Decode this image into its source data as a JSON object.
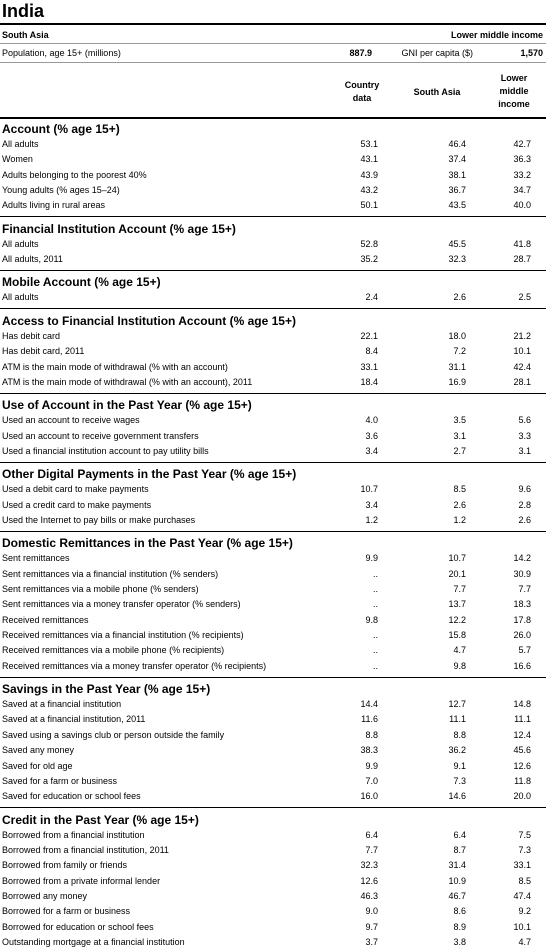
{
  "header": {
    "title": "India",
    "region": "South Asia",
    "income_group": "Lower middle income",
    "population_label": "Population, age 15+ (millions)",
    "population": "887.9",
    "gni_label": "GNI per capita ($)",
    "gni": "1,570"
  },
  "columns": [
    "Country data",
    "South Asia",
    "Lower middle income"
  ],
  "sections": [
    {
      "title": "Account (% age 15+)",
      "rows": [
        [
          "All adults",
          "53.1",
          "46.4",
          "42.7"
        ],
        [
          "Women",
          "43.1",
          "37.4",
          "36.3"
        ],
        [
          "Adults belonging to the poorest 40%",
          "43.9",
          "38.1",
          "33.2"
        ],
        [
          "Young adults (% ages 15–24)",
          "43.2",
          "36.7",
          "34.7"
        ],
        [
          "Adults living in rural areas",
          "50.1",
          "43.5",
          "40.0"
        ]
      ]
    },
    {
      "title": "Financial Institution Account (% age 15+)",
      "rows": [
        [
          "All adults",
          "52.8",
          "45.5",
          "41.8"
        ],
        [
          "All adults, 2011",
          "35.2",
          "32.3",
          "28.7"
        ]
      ]
    },
    {
      "title": "Mobile Account (% age 15+)",
      "rows": [
        [
          "All adults",
          "2.4",
          "2.6",
          "2.5"
        ]
      ]
    },
    {
      "title": "Access to Financial Institution Account (% age 15+)",
      "rows": [
        [
          "Has debit card",
          "22.1",
          "18.0",
          "21.2"
        ],
        [
          "Has debit card, 2011",
          "8.4",
          "7.2",
          "10.1"
        ],
        [
          "ATM is the main mode of withdrawal (% with an account)",
          "33.1",
          "31.1",
          "42.4"
        ],
        [
          "ATM is the main mode of withdrawal (% with an account), 2011",
          "18.4",
          "16.9",
          "28.1"
        ]
      ]
    },
    {
      "title": "Use of Account in the Past Year (% age 15+)",
      "rows": [
        [
          "Used an account to receive wages",
          "4.0",
          "3.5",
          "5.6"
        ],
        [
          "Used an account to receive government transfers",
          "3.6",
          "3.1",
          "3.3"
        ],
        [
          "Used a financial institution account to pay utility bills",
          "3.4",
          "2.7",
          "3.1"
        ]
      ]
    },
    {
      "title": "Other Digital Payments in the Past Year (% age 15+)",
      "rows": [
        [
          "Used a debit card to make payments",
          "10.7",
          "8.5",
          "9.6"
        ],
        [
          "Used a credit card to make payments",
          "3.4",
          "2.6",
          "2.8"
        ],
        [
          "Used the Internet to pay bills or make purchases",
          "1.2",
          "1.2",
          "2.6"
        ]
      ]
    },
    {
      "title": "Domestic Remittances in the Past Year (% age 15+)",
      "rows": [
        [
          "Sent remittances",
          "9.9",
          "10.7",
          "14.2"
        ],
        [
          "Sent remittances via a financial institution (% senders)",
          "..",
          "20.1",
          "30.9"
        ],
        [
          "Sent remittances via a mobile phone (% senders)",
          "..",
          "7.7",
          "7.7"
        ],
        [
          "Sent remittances via a money transfer operator (% senders)",
          "..",
          "13.7",
          "18.3"
        ],
        [
          "Received remittances",
          "9.8",
          "12.2",
          "17.8"
        ],
        [
          "Received remittances via a financial institution (% recipients)",
          "..",
          "15.8",
          "26.0"
        ],
        [
          "Received remittances via a mobile phone (% recipients)",
          "..",
          "4.7",
          "5.7"
        ],
        [
          "Received remittances via a money transfer operator (% recipients)",
          "..",
          "9.8",
          "16.6"
        ]
      ]
    },
    {
      "title": "Savings in the Past Year (% age 15+)",
      "rows": [
        [
          "Saved at a financial institution",
          "14.4",
          "12.7",
          "14.8"
        ],
        [
          "Saved at a financial institution, 2011",
          "11.6",
          "11.1",
          "11.1"
        ],
        [
          "Saved using a savings club or person outside the family",
          "8.8",
          "8.8",
          "12.4"
        ],
        [
          "Saved any money",
          "38.3",
          "36.2",
          "45.6"
        ],
        [
          "Saved for old age",
          "9.9",
          "9.1",
          "12.6"
        ],
        [
          "Saved for a farm or business",
          "7.0",
          "7.3",
          "11.8"
        ],
        [
          "Saved for education or school fees",
          "16.0",
          "14.6",
          "20.0"
        ]
      ]
    },
    {
      "title": "Credit in the Past Year (% age 15+)",
      "rows": [
        [
          "Borrowed from a financial institution",
          "6.4",
          "6.4",
          "7.5"
        ],
        [
          "Borrowed from a financial institution, 2011",
          "7.7",
          "8.7",
          "7.3"
        ],
        [
          "Borrowed from family or friends",
          "32.3",
          "31.4",
          "33.1"
        ],
        [
          "Borrowed from a private informal lender",
          "12.6",
          "10.9",
          "8.5"
        ],
        [
          "Borrowed any money",
          "46.3",
          "46.7",
          "47.4"
        ],
        [
          "Borrowed for a farm or business",
          "9.0",
          "8.6",
          "9.2"
        ],
        [
          "Borrowed for education or school fees",
          "9.7",
          "8.9",
          "10.1"
        ],
        [
          "Outstanding mortgage at a financial institution",
          "3.7",
          "3.8",
          "4.7"
        ]
      ]
    }
  ]
}
